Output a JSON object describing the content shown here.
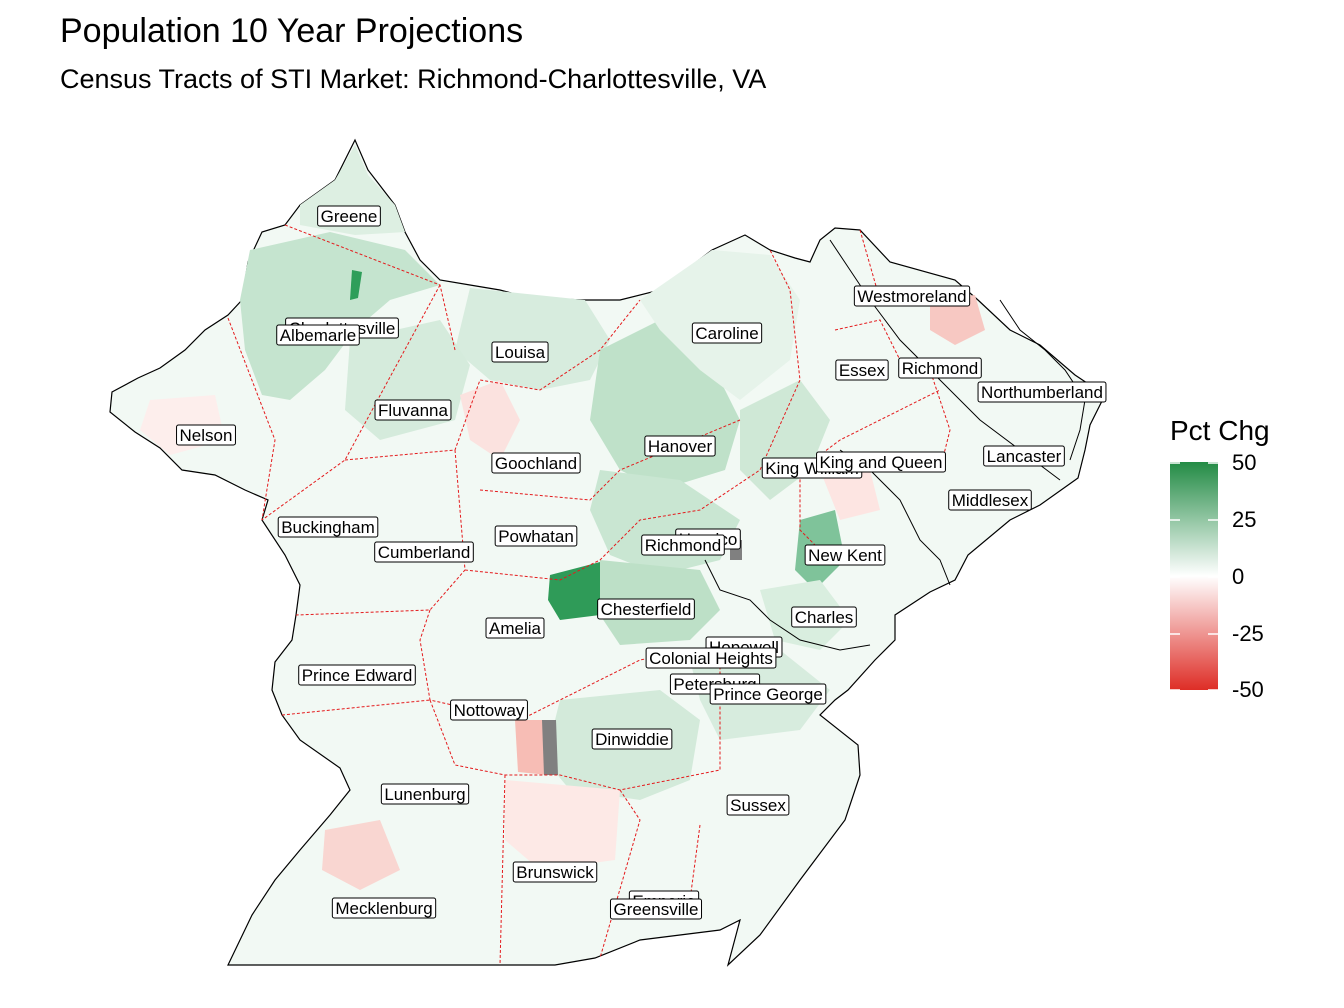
{
  "title": "Population 10 Year Projections",
  "subtitle": "Census Tracts of STI Market: Richmond-Charlottesville, VA",
  "legend": {
    "title": "Pct Chg",
    "ticks": [
      "50",
      "25",
      "0",
      "-25",
      "-50"
    ],
    "range": [
      -50,
      50
    ],
    "colors": {
      "high": "#238b45",
      "mid": "#ffffff",
      "low": "#de2d26",
      "missing": "#808080"
    }
  },
  "border_color": "#e41a1c",
  "counties": [
    {
      "name": "Greene",
      "value": 8
    },
    {
      "name": "Charlottesville",
      "value": 18
    },
    {
      "name": "Albemarle",
      "value": 14
    },
    {
      "name": "Louisa",
      "value": 12
    },
    {
      "name": "Caroline",
      "value": 10
    },
    {
      "name": "Westmoreland",
      "value": 4
    },
    {
      "name": "Essex",
      "value": 3
    },
    {
      "name": "Richmond",
      "value": 5
    },
    {
      "name": "Northumberland",
      "value": 4
    },
    {
      "name": "Nelson",
      "value": -3
    },
    {
      "name": "Fluvanna",
      "value": 12
    },
    {
      "name": "Hanover",
      "value": 18
    },
    {
      "name": "Goochland",
      "value": 4
    },
    {
      "name": "King William",
      "value": 14
    },
    {
      "name": "King and Queen",
      "value": 4
    },
    {
      "name": "Lancaster",
      "value": -2
    },
    {
      "name": "Middlesex",
      "value": 3
    },
    {
      "name": "Buckingham",
      "value": 2
    },
    {
      "name": "Powhatan",
      "value": 10
    },
    {
      "name": "Henrico",
      "value": 12
    },
    {
      "name": "Richmond",
      "value": 8
    },
    {
      "name": "Cumberland",
      "value": 3
    },
    {
      "name": "New Kent",
      "value": 26
    },
    {
      "name": "Chesterfield",
      "value": 18
    },
    {
      "name": "Charles",
      "value": 10
    },
    {
      "name": "Amelia",
      "value": 5
    },
    {
      "name": "Hopewell",
      "value": -4
    },
    {
      "name": "Colonial Heights",
      "value": 6
    },
    {
      "name": "Prince Edward",
      "value": 5
    },
    {
      "name": "Petersburg",
      "value": -2
    },
    {
      "name": "Prince George",
      "value": 10
    },
    {
      "name": "Nottoway",
      "value": 3
    },
    {
      "name": "Dinwiddie",
      "value": 10
    },
    {
      "name": "Lunenburg",
      "value": 0
    },
    {
      "name": "Sussex",
      "value": 3
    },
    {
      "name": "Brunswick",
      "value": -4
    },
    {
      "name": "Emporia",
      "value": -2
    },
    {
      "name": "Greensville",
      "value": 3
    },
    {
      "name": "Mecklenburg",
      "value": 4
    }
  ]
}
